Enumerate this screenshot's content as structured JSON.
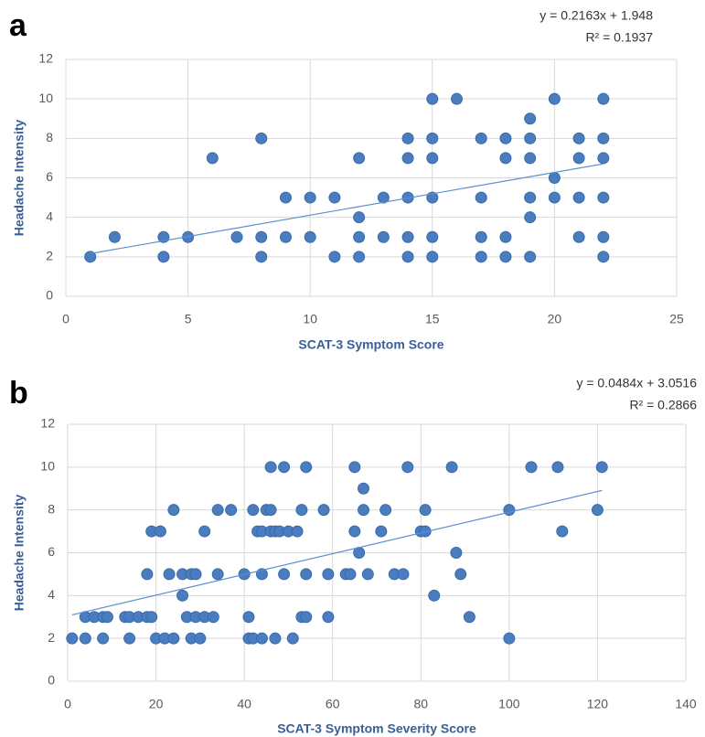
{
  "chart_data": [
    {
      "type": "scatter",
      "panel_label": "a",
      "equation": "y = 0.2163x + 1.948",
      "r_squared": "R² = 0.1937",
      "x_label": "SCAT-3 Symptom Score",
      "y_label": "Headache Intensity",
      "color": "#4a7cc0",
      "grid": true,
      "x": [
        1,
        2,
        4,
        4,
        5,
        6,
        7,
        8,
        8,
        8,
        9,
        9,
        10,
        10,
        11,
        11,
        12,
        12,
        12,
        12,
        13,
        13,
        14,
        14,
        14,
        14,
        14,
        15,
        15,
        15,
        15,
        15,
        15,
        16,
        17,
        17,
        17,
        17,
        18,
        18,
        18,
        18,
        19,
        19,
        19,
        19,
        19,
        19,
        20,
        20,
        20,
        21,
        21,
        21,
        21,
        22,
        22,
        22,
        22,
        22,
        22
      ],
      "values": [
        2,
        3,
        3,
        2,
        3,
        7,
        3,
        8,
        3,
        2,
        5,
        3,
        5,
        3,
        5,
        2,
        7,
        4,
        3,
        2,
        5,
        3,
        8,
        7,
        5,
        3,
        2,
        10,
        8,
        7,
        5,
        3,
        2,
        10,
        8,
        5,
        3,
        2,
        8,
        7,
        3,
        2,
        9,
        8,
        7,
        5,
        4,
        2,
        10,
        6,
        5,
        8,
        7,
        5,
        3,
        10,
        8,
        7,
        5,
        3,
        2
      ],
      "trendline": {
        "x": [
          1,
          22
        ],
        "values": [
          2.16,
          6.71
        ]
      },
      "xlim": [
        0,
        25
      ],
      "ylim": [
        0,
        12
      ],
      "xticks": [
        0,
        5,
        10,
        15,
        20,
        25
      ],
      "yticks": [
        0,
        2,
        4,
        6,
        8,
        10,
        12
      ]
    },
    {
      "type": "scatter",
      "panel_label": "b",
      "equation": "y = 0.0484x + 3.0516",
      "r_squared": "R² = 0.2866",
      "x_label": "SCAT-3 Symptom Severity Score",
      "y_label": "Headache Intensity",
      "color": "#4a7cc0",
      "grid": true,
      "x": [
        1,
        4,
        8,
        14,
        20,
        22,
        24,
        28,
        30,
        41,
        42,
        44,
        47,
        51,
        100,
        4,
        6,
        8,
        9,
        13,
        14,
        16,
        18,
        19,
        27,
        29,
        31,
        33,
        41,
        53,
        54,
        59,
        91,
        26,
        83,
        18,
        23,
        26,
        28,
        29,
        34,
        40,
        44,
        49,
        54,
        59,
        63,
        64,
        68,
        74,
        76,
        89,
        66,
        88,
        19,
        21,
        31,
        43,
        44,
        46,
        47,
        48,
        50,
        52,
        65,
        71,
        80,
        81,
        112,
        24,
        34,
        37,
        42,
        45,
        46,
        53,
        58,
        67,
        72,
        81,
        100,
        120,
        67,
        46,
        49,
        54,
        65,
        77,
        87,
        105,
        111,
        121
      ],
      "values": [
        2,
        2,
        2,
        2,
        2,
        2,
        2,
        2,
        2,
        2,
        2,
        2,
        2,
        2,
        2,
        3,
        3,
        3,
        3,
        3,
        3,
        3,
        3,
        3,
        3,
        3,
        3,
        3,
        3,
        3,
        3,
        3,
        3,
        4,
        4,
        5,
        5,
        5,
        5,
        5,
        5,
        5,
        5,
        5,
        5,
        5,
        5,
        5,
        5,
        5,
        5,
        5,
        6,
        6,
        7,
        7,
        7,
        7,
        7,
        7,
        7,
        7,
        7,
        7,
        7,
        7,
        7,
        7,
        7,
        8,
        8,
        8,
        8,
        8,
        8,
        8,
        8,
        8,
        8,
        8,
        8,
        8,
        9,
        10,
        10,
        10,
        10,
        10,
        10,
        10,
        10,
        10
      ],
      "trendline": {
        "x": [
          1,
          121
        ],
        "values": [
          3.1,
          8.91
        ]
      },
      "xlim": [
        0,
        140
      ],
      "ylim": [
        0,
        12
      ],
      "xticks": [
        0,
        20,
        40,
        60,
        80,
        100,
        120,
        140
      ],
      "yticks": [
        0,
        2,
        4,
        6,
        8,
        10,
        12
      ]
    }
  ]
}
